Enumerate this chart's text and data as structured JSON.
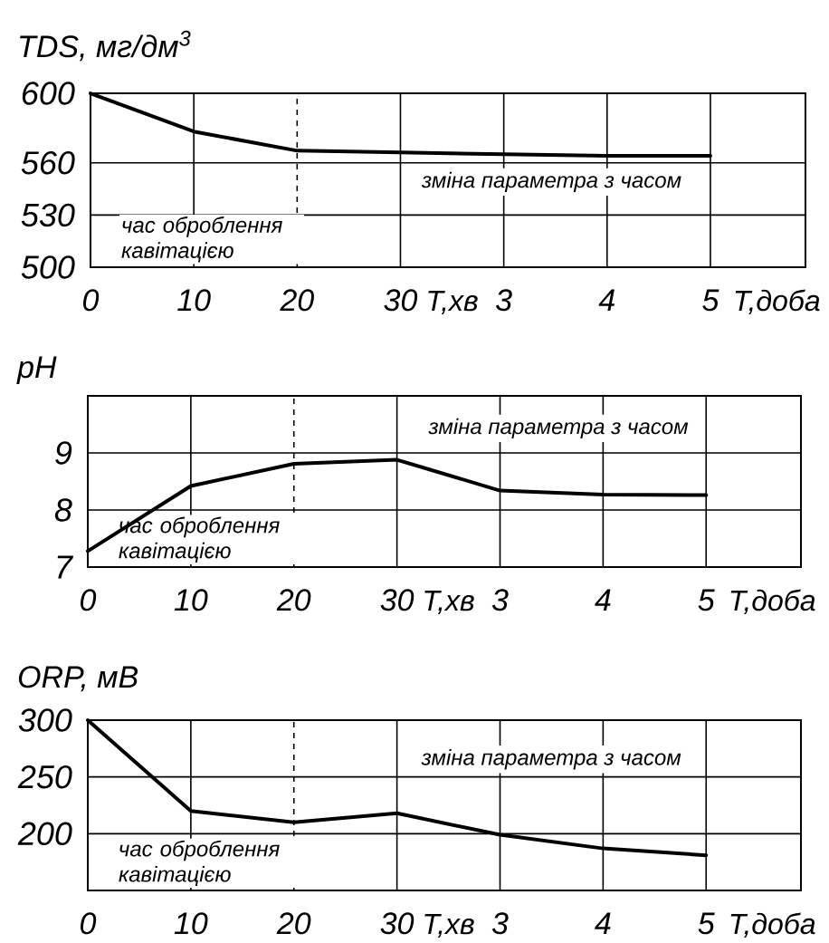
{
  "chart_data": [
    {
      "type": "line",
      "ylabel": "TDS, мг/дм$^{3}$",
      "xlabel": "T,доба",
      "categories": [
        "0",
        "10",
        "20",
        "30",
        "3",
        "4",
        "5"
      ],
      "values": [
        600,
        578,
        567,
        566,
        565,
        564,
        564
      ],
      "color": "#000000",
      "ylim": [
        500,
        600
      ],
      "yticks": [
        500,
        530,
        560,
        600
      ],
      "grid": true,
      "marker": "none",
      "line_style": "solid",
      "ref_lines": [
        {
          "axis": "x",
          "value": "20",
          "line_style": "dashed"
        }
      ],
      "annotations": [
        "час оброблення кавітацією",
        "зміна параметра з часом",
        "T,хв"
      ]
    },
    {
      "type": "line",
      "ylabel": "pH",
      "xlabel": "T,доба",
      "categories": [
        "0",
        "10",
        "20",
        "30",
        "3",
        "4",
        "5"
      ],
      "values": [
        7.28,
        8.42,
        8.81,
        8.88,
        8.34,
        8.27,
        8.26
      ],
      "color": "#000000",
      "ylim": [
        7,
        10
      ],
      "yticks": [
        7,
        8,
        9
      ],
      "grid": true,
      "marker": "none",
      "line_style": "solid",
      "ref_lines": [
        {
          "axis": "x",
          "value": "20",
          "line_style": "dashed"
        }
      ],
      "annotations": [
        "час оброблення кавітацією",
        "зміна параметра з часом",
        "T,хв"
      ]
    },
    {
      "type": "line",
      "ylabel": "ORP, мВ",
      "xlabel": "T,доба",
      "categories": [
        "0",
        "10",
        "20",
        "30",
        "3",
        "4",
        "5"
      ],
      "values": [
        300,
        220,
        210,
        218,
        199,
        187,
        181
      ],
      "color": "#000000",
      "ylim": [
        150,
        300
      ],
      "yticks": [
        200,
        250,
        300
      ],
      "grid": true,
      "marker": "none",
      "line_style": "solid",
      "ref_lines": [
        {
          "axis": "x",
          "value": "20",
          "line_style": "dashed"
        }
      ],
      "annotations": [
        "час оброблення кавітацією",
        "зміна параметра з часом",
        "T,хв"
      ]
    }
  ]
}
